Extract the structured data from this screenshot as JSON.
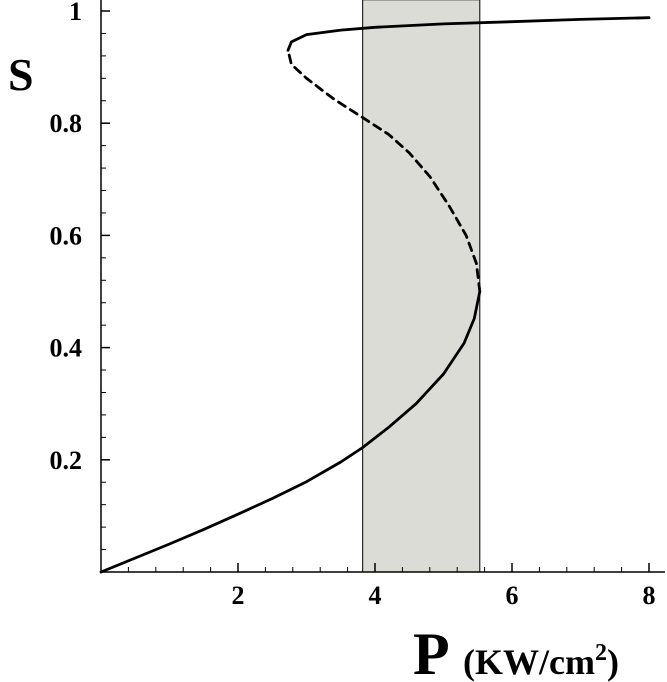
{
  "chart_data": {
    "type": "line",
    "title": "",
    "xlabel": {
      "symbol": "P",
      "unit_prefix": "(KW/cm",
      "unit_exponent": "2",
      "unit_suffix": ")"
    },
    "ylabel": "S",
    "xlim": [
      0,
      8.3
    ],
    "ylim": [
      0,
      1.02
    ],
    "x_ticks": [
      {
        "value": 2,
        "label": "2"
      },
      {
        "value": 4,
        "label": "4"
      },
      {
        "value": 6,
        "label": "6"
      },
      {
        "value": 8,
        "label": "8"
      }
    ],
    "y_ticks": [
      {
        "value": 0.2,
        "label": "0.2"
      },
      {
        "value": 0.4,
        "label": "0.4"
      },
      {
        "value": 0.6,
        "label": "0.6"
      },
      {
        "value": 0.8,
        "label": "0.8"
      },
      {
        "value": 1.0,
        "label": "1"
      }
    ],
    "shaded_region": {
      "x_start": 3.82,
      "x_end": 5.53,
      "color": "#dcdcd7"
    },
    "series": [
      {
        "style": "solid",
        "points": [
          [
            0.0,
            0.0
          ],
          [
            0.5,
            0.025
          ],
          [
            1.0,
            0.05
          ],
          [
            1.5,
            0.076
          ],
          [
            2.0,
            0.103
          ],
          [
            2.5,
            0.131
          ],
          [
            3.0,
            0.161
          ],
          [
            3.5,
            0.196
          ],
          [
            3.82,
            0.222
          ],
          [
            4.2,
            0.258
          ],
          [
            4.6,
            0.3
          ],
          [
            5.0,
            0.353
          ],
          [
            5.3,
            0.408
          ],
          [
            5.45,
            0.452
          ],
          [
            5.53,
            0.5
          ]
        ]
      },
      {
        "style": "dashed",
        "points": [
          [
            5.53,
            0.5
          ],
          [
            5.48,
            0.55
          ],
          [
            5.33,
            0.6
          ],
          [
            5.08,
            0.653
          ],
          [
            4.8,
            0.705
          ],
          [
            4.5,
            0.747
          ],
          [
            4.2,
            0.78
          ],
          [
            3.82,
            0.81
          ],
          [
            3.4,
            0.843
          ],
          [
            3.0,
            0.88
          ],
          [
            2.78,
            0.905
          ],
          [
            2.73,
            0.93
          ]
        ]
      },
      {
        "style": "solid",
        "points": [
          [
            2.73,
            0.93
          ],
          [
            2.78,
            0.945
          ],
          [
            3.0,
            0.958
          ],
          [
            3.5,
            0.966
          ],
          [
            4.0,
            0.971
          ],
          [
            5.0,
            0.977
          ],
          [
            6.0,
            0.981
          ],
          [
            7.0,
            0.985
          ],
          [
            8.0,
            0.988
          ]
        ]
      }
    ],
    "grid": false,
    "legend": null
  }
}
